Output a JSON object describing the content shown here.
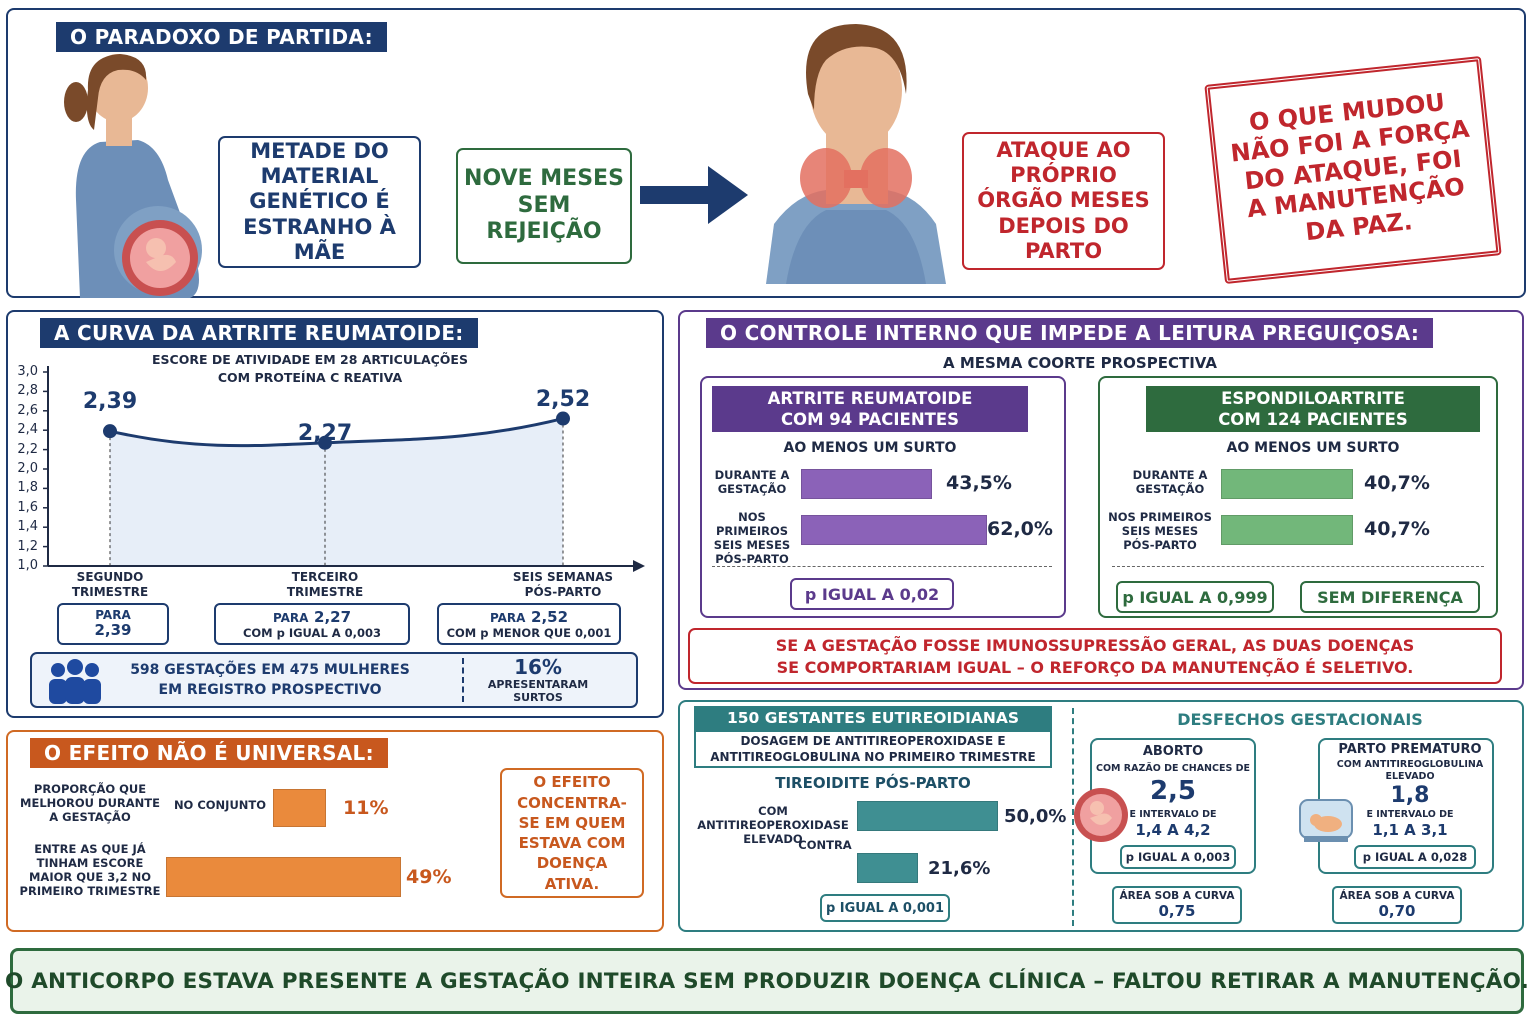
{
  "paradoxo": {
    "title": "O PARADOXO DE PARTIDA:",
    "box1": "METADE DO MATERIAL GENÉTICO É ESTRANHO À MÃE",
    "box2": "NOVE MESES SEM REJEIÇÃO",
    "box3": "ATAQUE AO PRÓPRIO ÓRGÃO MESES DEPOIS DO PARTO",
    "stamp": "O QUE MUDOU NÃO FOI A FORÇA DO ATAQUE, FOI A MANUTENÇÃO DA PAZ."
  },
  "ar_curve": {
    "title": "A CURVA DA ARTRITE REUMATOIDE:",
    "subtitle1": "ESCORE DE ATIVIDADE EM 28 ARTICULAÇÕES",
    "subtitle2": "COM PROTEÍNA C REATIVA",
    "point_labels": [
      "2,39",
      "2,27",
      "2,52"
    ],
    "xlabels": [
      [
        "SEGUNDO",
        "TRIMESTRE"
      ],
      [
        "TERCEIRO",
        "TRIMESTRE"
      ],
      [
        "SEIS SEMANAS",
        "PÓS-PARTO"
      ]
    ],
    "yticks": [
      "3,0",
      "2,8",
      "2,6",
      "2,4",
      "2,2",
      "2,0",
      "1,8",
      "1,6",
      "1,4",
      "1,2",
      "1,0"
    ],
    "para": "PARA",
    "box1_value": "2,39",
    "box2_value": "2,27",
    "box2_note": "COM p IGUAL A 0,003",
    "box3_value": "2,52",
    "box3_note": "COM p MENOR QUE 0,001",
    "registry1": "598 GESTAÇÕES EM 475 MULHERES",
    "registry2": "EM REGISTRO PROSPECTIVO",
    "pct": "16%",
    "pct_note1": "APRESENTARAM",
    "pct_note2": "SURTOS"
  },
  "chart_data": {
    "type": "line",
    "categories": [
      "SEGUNDO TRIMESTRE",
      "TERCEIRO TRIMESTRE",
      "SEIS SEMANAS PÓS-PARTO"
    ],
    "values": [
      2.39,
      2.27,
      2.52
    ],
    "ylim": [
      1.0,
      3.0
    ],
    "title": "ESCORE DE ATIVIDADE EM 28 ARTICULAÇÕES COM PROTEÍNA C REATIVA",
    "grid": false
  },
  "efeito": {
    "title": "O EFEITO NÃO É UNIVERSAL:",
    "row1_label": [
      "PROPORÇÃO QUE",
      "MELHOROU DURANTE",
      "A GESTAÇÃO"
    ],
    "row1_sub": "NO CONJUNTO",
    "row1_value": "11%",
    "row1_frac": 0.11,
    "row2_label": [
      "ENTRE AS QUE JÁ",
      "TINHAM ESCORE",
      "MAIOR QUE 3,2 NO",
      "PRIMEIRO TRIMESTRE"
    ],
    "row2_value": "49%",
    "row2_frac": 0.49,
    "note": "O EFEITO CONCENTRA-SE EM QUEM ESTAVA COM DOENÇA ATIVA."
  },
  "controle": {
    "title": "O CONTROLE INTERNO QUE IMPEDE A LEITURA PREGUIÇOSA:",
    "subtitle": "A MESMA COORTE PROSPECTIVA",
    "ar": {
      "head1": "ARTRITE REUMATOIDE",
      "head2": "COM 94 PACIENTES",
      "surto": "AO MENOS UM SURTO",
      "row1_label": [
        "DURANTE A",
        "GESTAÇÃO"
      ],
      "row1_value": "43,5%",
      "row1_frac": 0.435,
      "row2_label": [
        "NOS PRIMEIROS",
        "SEIS MESES",
        "PÓS-PARTO"
      ],
      "row2_value": "62,0%",
      "row2_frac": 0.62,
      "p": "p IGUAL A 0,02"
    },
    "esp": {
      "head1": "ESPONDILOARTRITE",
      "head2": "COM 124 PACIENTES",
      "surto": "AO MENOS UM SURTO",
      "row1_label": [
        "DURANTE A",
        "GESTAÇÃO"
      ],
      "row1_value": "40,7%",
      "row1_frac": 0.407,
      "row2_label": [
        "NOS PRIMEIROS",
        "SEIS MESES",
        "PÓS-PARTO"
      ],
      "row2_value": "40,7%",
      "row2_frac": 0.407,
      "p": "p IGUAL A 0,999",
      "sem": "SEM DIFERENÇA"
    },
    "warn1": "SE A GESTAÇÃO FOSSE IMUNOSSUPRESSÃO GERAL, AS DUAS DOENÇAS",
    "warn2": "SE COMPORTARIAM IGUAL – O REFORÇO DA MANUTENÇÃO É SELETIVO."
  },
  "tireoide": {
    "head": "150 GESTANTES EUTIREOIDIANAS",
    "sub1": "DOSAGEM DE ANTITIREOPEROXIDASE E",
    "sub2": "ANTITIREOGLOBULINA NO PRIMEIRO TRIMESTRE",
    "tp": "TIREOIDITE PÓS-PARTO",
    "row1_label": [
      "COM ANTITIREOPEROXIDASE",
      "ELEVADO"
    ],
    "row1_value": "50,0%",
    "row1_frac": 0.5,
    "contra": "CONTRA",
    "row2_value": "21,6%",
    "row2_frac": 0.216,
    "p": "p IGUAL A 0,001",
    "desfechos": "DESFECHOS GESTACIONAIS",
    "aborto": {
      "title": "ABORTO",
      "sub": "COM RAZÃO DE CHANCES DE",
      "val": "2,5",
      "ic_label": "E INTERVALO DE",
      "ic": "1,4 A 4,2",
      "p": "p IGUAL A 0,003",
      "auc_label": "ÁREA SOB A CURVA",
      "auc": "0,75"
    },
    "parto": {
      "title": "PARTO PREMATURO",
      "sub1": "COM ANTITIREOGLOBULINA",
      "sub2": "ELEVADO",
      "val": "1,8",
      "ic_label": "E INTERVALO DE",
      "ic": "1,1 A 3,1",
      "p": "p IGUAL A 0,028",
      "auc_label": "ÁREA SOB A CURVA",
      "auc": "0,70"
    }
  },
  "footer": "O ANTICORPO ESTAVA PRESENTE A GESTAÇÃO INTEIRA SEM PRODUZIR DOENÇA CLÍNICA – FALTOU RETIRAR A MANUTENÇÃO.",
  "colors": {
    "navy": "#1d3b6e",
    "green": "#2e6b3e",
    "red": "#c0262d",
    "purple": "#5b3a8c",
    "teal": "#2e7d80",
    "orange": "#e07b2e",
    "blue": "#1f4aa0"
  }
}
